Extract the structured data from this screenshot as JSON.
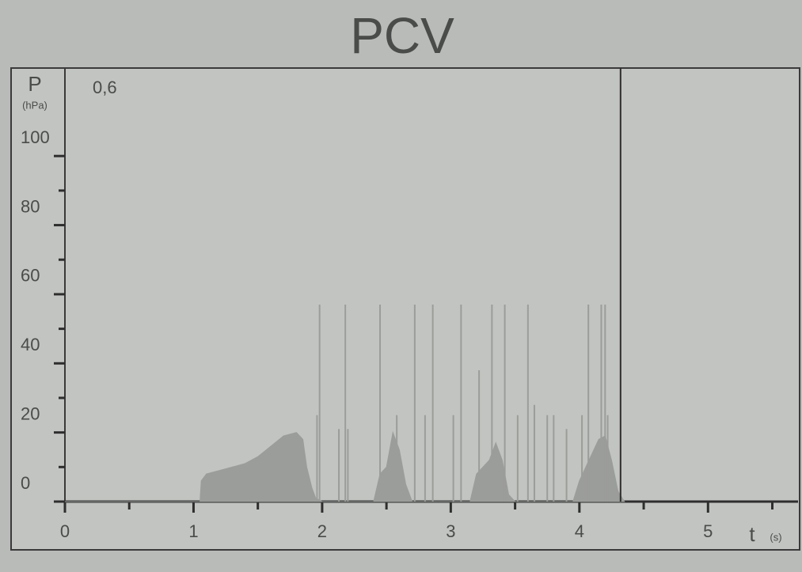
{
  "chart_data": {
    "type": "area",
    "title": "PCV",
    "ylabel": "P",
    "yunit": "(hPa)",
    "xlabel": "t",
    "xunit": "(s)",
    "annotation": "0,6",
    "xlim": [
      0,
      5.7
    ],
    "ylim": [
      0,
      125
    ],
    "xticks": [
      0,
      1,
      2,
      3,
      4,
      5
    ],
    "xticks_minor": [
      0.5,
      1.5,
      2.5,
      3.5,
      4.5,
      5.5
    ],
    "yticks": [
      0,
      20,
      40,
      60,
      80,
      100
    ],
    "yticks_minor": [
      10,
      30,
      50,
      70,
      90
    ],
    "cursor": 4.32,
    "color": "#9b9d9a",
    "x": [
      0,
      1.05,
      1.06,
      1.1,
      1.2,
      1.3,
      1.4,
      1.5,
      1.6,
      1.7,
      1.8,
      1.85,
      1.88,
      1.92,
      1.95,
      2.0,
      2.4,
      2.45,
      2.5,
      2.55,
      2.6,
      2.65,
      2.7,
      3.15,
      3.2,
      3.3,
      3.35,
      3.4,
      3.45,
      3.5,
      3.95,
      4.0,
      4.05,
      4.1,
      4.15,
      4.2,
      4.25,
      4.3,
      4.35
    ],
    "values": [
      0,
      0,
      6,
      8,
      9,
      10,
      11,
      13,
      16,
      19,
      20,
      18,
      10,
      4,
      1,
      0,
      0,
      8,
      10,
      20,
      15,
      5,
      0,
      0,
      8,
      12,
      17,
      12,
      2,
      0,
      0,
      6,
      10,
      14,
      18,
      19,
      12,
      3,
      0
    ],
    "spikes_x": [
      1.96,
      1.98,
      2.13,
      2.18,
      2.2,
      2.45,
      2.58,
      2.72,
      2.8,
      2.86,
      3.02,
      3.08,
      3.22,
      3.32,
      3.42,
      3.52,
      3.6,
      3.65,
      3.75,
      3.8,
      3.9,
      4.02,
      4.07,
      4.17,
      4.2,
      4.22
    ],
    "spikes": [
      25,
      57,
      21,
      57,
      21,
      57,
      25,
      57,
      25,
      57,
      25,
      57,
      38,
      57,
      57,
      25,
      57,
      28,
      25,
      25,
      21,
      25,
      57,
      57,
      57,
      25
    ]
  }
}
